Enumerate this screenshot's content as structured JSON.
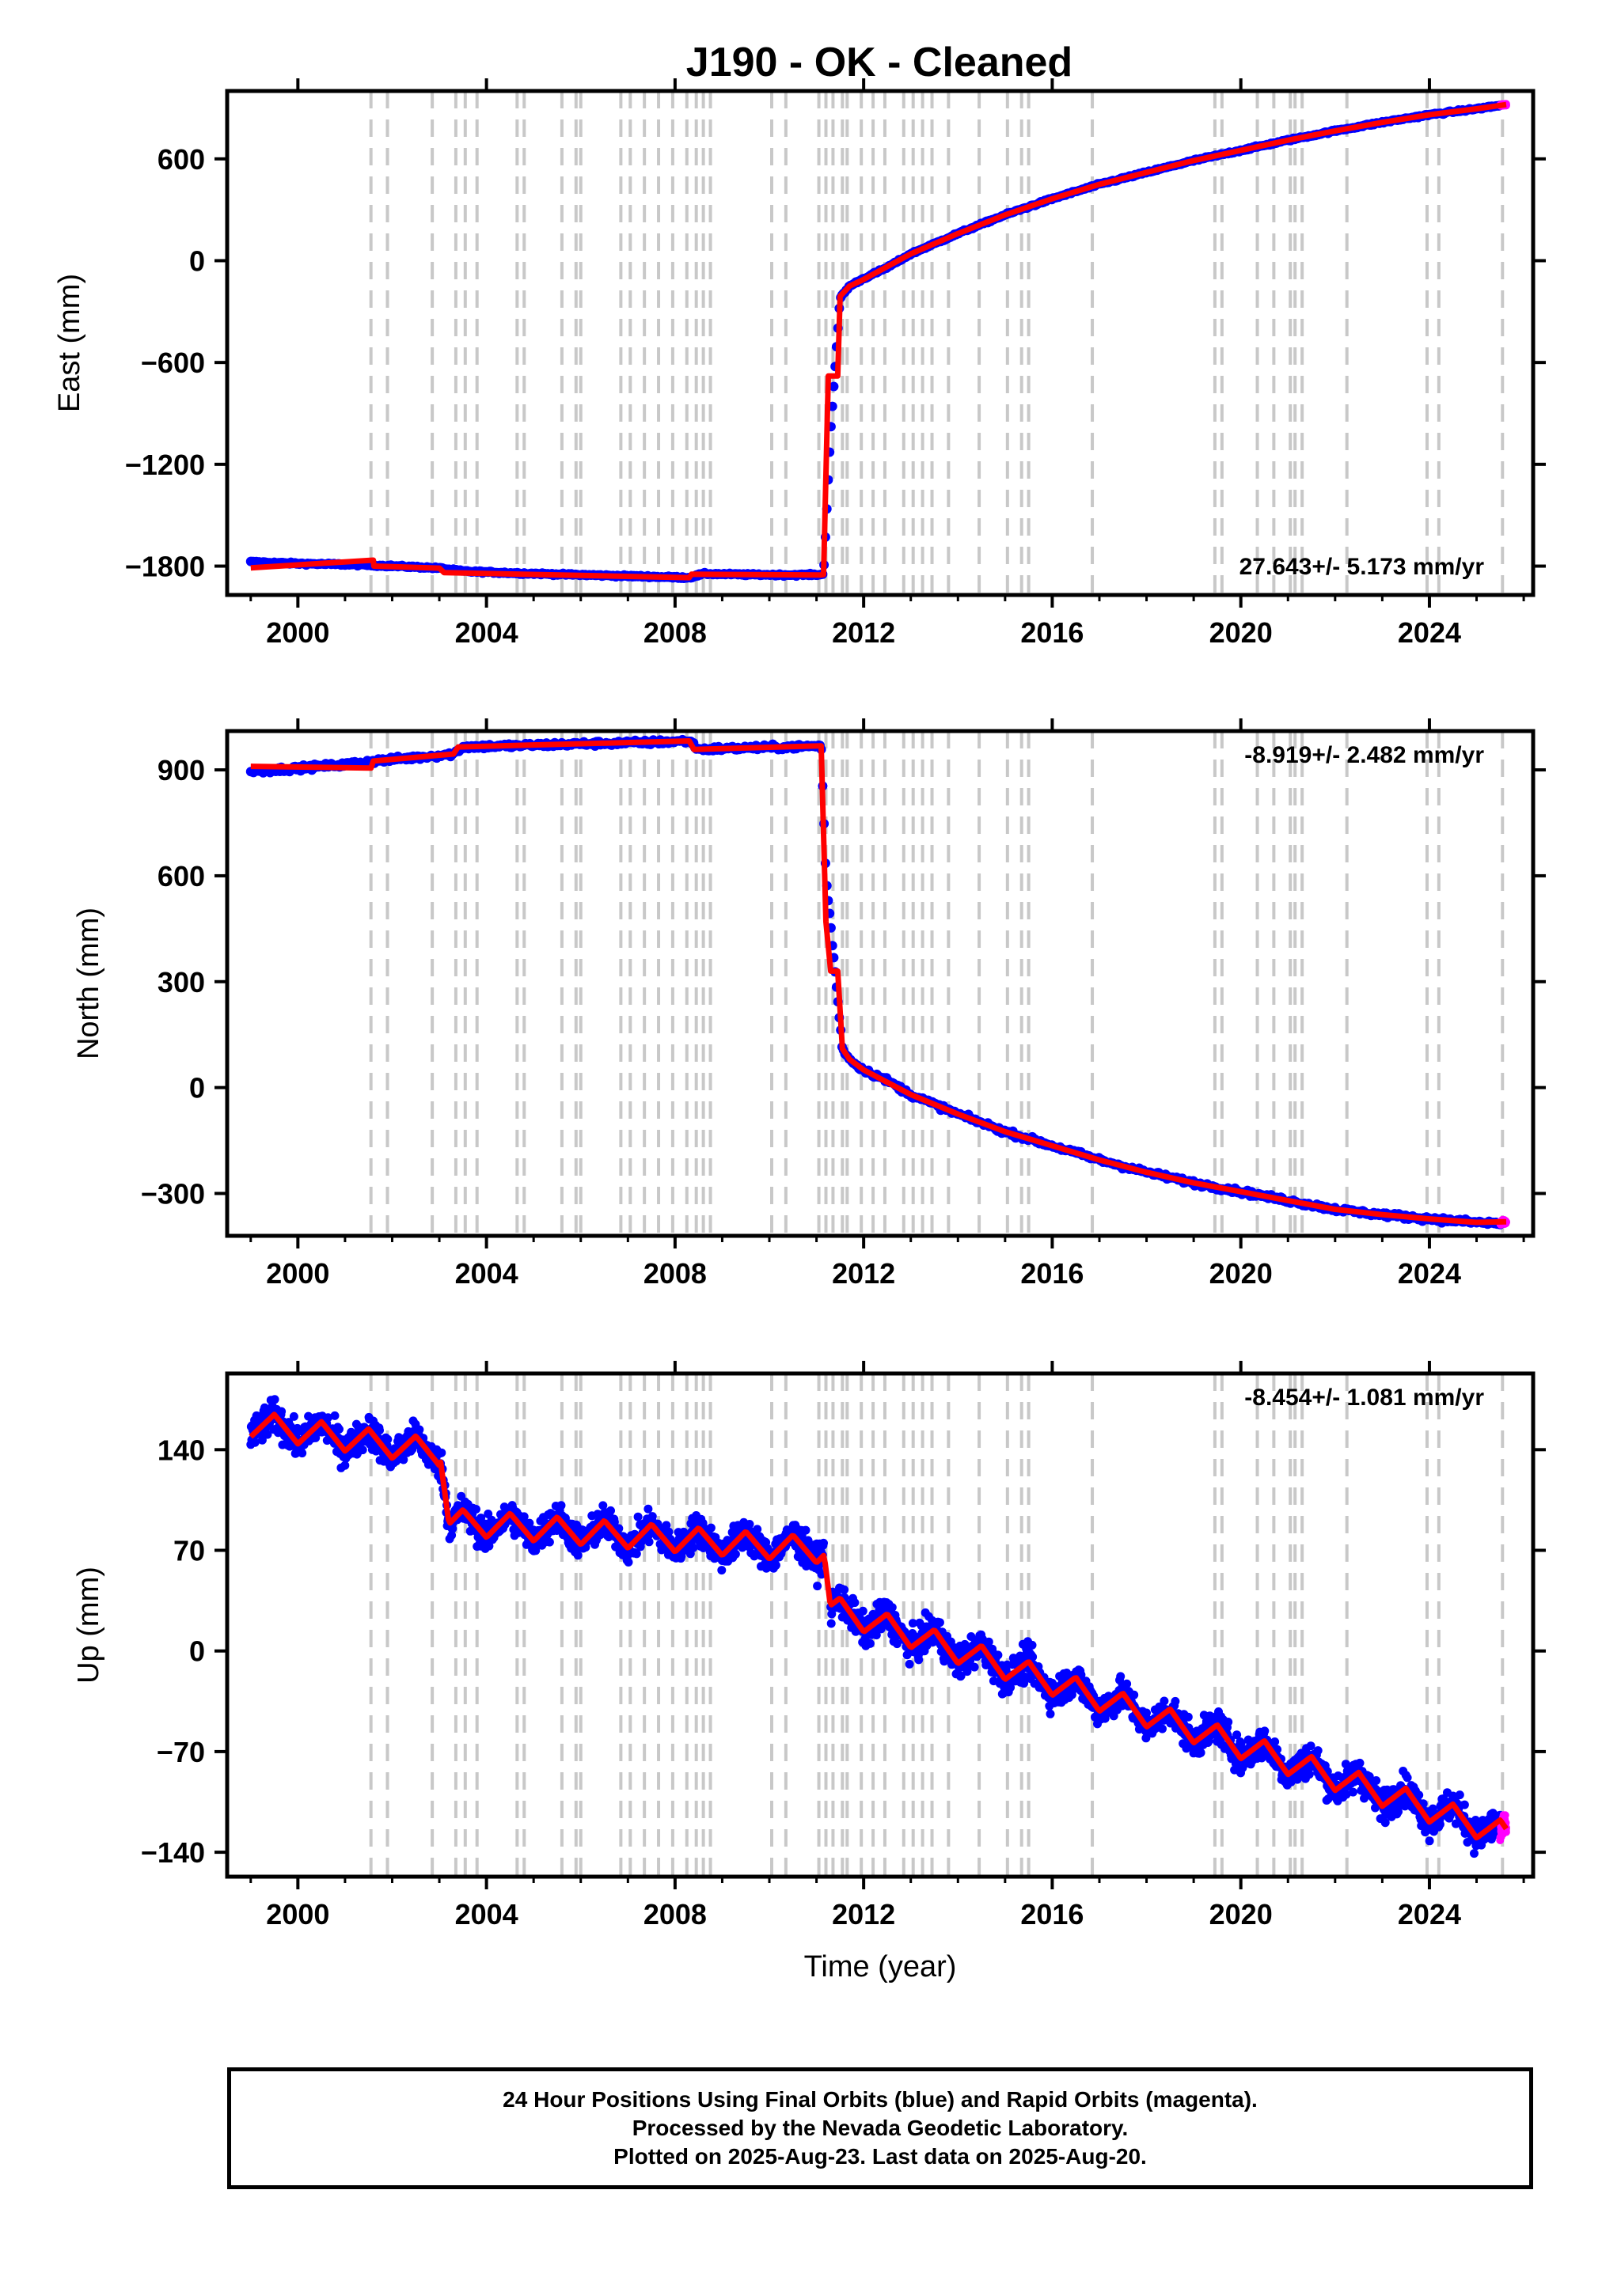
{
  "title": "J190  - OK - Cleaned",
  "colors": {
    "final_orbits": "#0000ff",
    "rapid_orbits": "#ff00ff",
    "model": "#ff0000",
    "steps": "#c8c8c8",
    "axes": "#000000"
  },
  "chart_data": [
    {
      "type": "scatter",
      "ylabel": "East (mm)",
      "xlabel": "",
      "xlim": [
        1998.5,
        2026.2
      ],
      "ylim": [
        -1970,
        1000
      ],
      "xticks": [
        2000,
        2004,
        2008,
        2012,
        2016,
        2020,
        2024
      ],
      "yticks": [
        600,
        0,
        -600,
        -1200,
        -1800
      ],
      "tick_labels_y": [
        "600",
        "0",
        "−600",
        "−1200",
        "−1800"
      ],
      "rate_label": "27.643+/- 5.173 mm/yr",
      "rate_position": "bottom-right",
      "series": [
        {
          "kind": "final_orbits",
          "x": [
            1999.0,
            2000.0,
            2001.0,
            2001.6,
            2002.5,
            2003.0,
            2003.5,
            2004.5,
            2005.5,
            2006.5,
            2007.5,
            2008.3,
            2008.6,
            2009.5,
            2010.5,
            2011.15,
            2011.3,
            2011.5,
            2011.7,
            2012.0,
            2012.5,
            2013.0,
            2014.0,
            2015.0,
            2016.0,
            2017.0,
            2018.0,
            2019.0,
            2020.0,
            2021.0,
            2022.0,
            2023.0,
            2024.0,
            2025.0,
            2025.5
          ],
          "y": [
            -1775,
            -1785,
            -1790,
            -1795,
            -1805,
            -1812,
            -1830,
            -1840,
            -1848,
            -1855,
            -1862,
            -1868,
            -1845,
            -1850,
            -1852,
            -1850,
            -1005,
            -220,
            -150,
            -105,
            -40,
            40,
            160,
            270,
            365,
            450,
            520,
            590,
            650,
            710,
            765,
            815,
            860,
            895,
            915
          ]
        },
        {
          "kind": "rapid_orbits",
          "x": [
            2025.5,
            2025.63
          ],
          "y": [
            915,
            920
          ]
        }
      ],
      "model": {
        "x": [
          1999.0,
          2001.6,
          2001.61,
          2003.0,
          2003.1,
          2008.3,
          2008.35,
          2011.1,
          2011.15,
          2011.25,
          2011.45,
          2011.5,
          2011.7,
          2012.0,
          2013.0,
          2014.0,
          2015.0,
          2016.0,
          2017.0,
          2018.0,
          2019.0,
          2020.0,
          2021.0,
          2022.0,
          2023.0,
          2024.0,
          2025.0,
          2025.63
        ],
        "y": [
          -1810,
          -1765,
          -1800,
          -1812,
          -1838,
          -1868,
          -1848,
          -1852,
          -1850,
          -680,
          -680,
          -210,
          -150,
          -110,
          40,
          160,
          270,
          365,
          450,
          520,
          590,
          650,
          710,
          765,
          815,
          860,
          895,
          920
        ]
      },
      "steps": [
        2001.55,
        2001.9,
        2002.85,
        2003.35,
        2003.55,
        2003.8,
        2004.65,
        2004.8,
        2005.6,
        2005.9,
        2006.0,
        2006.85,
        2007.05,
        2007.35,
        2007.65,
        2007.95,
        2008.25,
        2008.45,
        2008.6,
        2008.75,
        2010.05,
        2010.35,
        2011.05,
        2011.2,
        2011.35,
        2011.55,
        2011.65,
        2011.95,
        2012.2,
        2012.45,
        2012.85,
        2013.05,
        2013.25,
        2013.45,
        2013.8,
        2014.45,
        2015.05,
        2015.35,
        2015.5,
        2016.85,
        2019.45,
        2019.6,
        2020.35,
        2020.7,
        2021.05,
        2021.15,
        2021.3,
        2022.25,
        2023.95,
        2024.2,
        2025.55
      ]
    },
    {
      "type": "scatter",
      "ylabel": "North (mm)",
      "xlabel": "",
      "xlim": [
        1998.5,
        2026.2
      ],
      "ylim": [
        -420,
        1010
      ],
      "xticks": [
        2000,
        2004,
        2008,
        2012,
        2016,
        2020,
        2024
      ],
      "yticks": [
        900,
        600,
        300,
        0,
        -300
      ],
      "tick_labels_y": [
        "900",
        "600",
        "300",
        "0",
        "−300"
      ],
      "rate_label": "-8.919+/- 2.482 mm/yr",
      "rate_position": "top-right",
      "series": [
        {
          "kind": "final_orbits",
          "x": [
            1999.0,
            2000.0,
            2001.0,
            2001.6,
            2002.5,
            2003.3,
            2003.5,
            2004.5,
            2005.5,
            2006.5,
            2007.5,
            2008.3,
            2008.5,
            2009.5,
            2010.5,
            2011.1,
            2011.2,
            2011.4,
            2011.55,
            2011.7,
            2012.0,
            2012.5,
            2013.0,
            2014.0,
            2015.0,
            2016.0,
            2017.0,
            2018.0,
            2019.0,
            2020.0,
            2021.0,
            2022.0,
            2023.0,
            2024.0,
            2025.0,
            2025.5
          ],
          "y": [
            895,
            905,
            915,
            925,
            935,
            945,
            965,
            968,
            972,
            975,
            978,
            982,
            958,
            962,
            965,
            968,
            600,
            320,
            110,
            80,
            50,
            20,
            -20,
            -75,
            -125,
            -165,
            -205,
            -240,
            -270,
            -295,
            -320,
            -345,
            -360,
            -372,
            -382,
            -385
          ]
        },
        {
          "kind": "rapid_orbits",
          "x": [
            2025.5,
            2025.63
          ],
          "y": [
            -385,
            -380
          ]
        }
      ],
      "model": {
        "x": [
          1999.0,
          2001.55,
          2001.6,
          2003.3,
          2003.4,
          2008.3,
          2008.4,
          2011.1,
          2011.2,
          2011.3,
          2011.45,
          2011.55,
          2011.7,
          2012.0,
          2013.0,
          2014.0,
          2015.0,
          2016.0,
          2017.0,
          2018.0,
          2019.0,
          2020.0,
          2021.0,
          2022.0,
          2023.0,
          2024.0,
          2025.0,
          2025.63
        ],
        "y": [
          910,
          905,
          925,
          945,
          965,
          982,
          958,
          968,
          470,
          330,
          330,
          110,
          80,
          50,
          -20,
          -75,
          -125,
          -165,
          -205,
          -240,
          -270,
          -295,
          -320,
          -345,
          -360,
          -372,
          -382,
          -380
        ]
      },
      "steps": [
        2001.55,
        2001.9,
        2002.85,
        2003.35,
        2003.55,
        2003.8,
        2004.65,
        2004.8,
        2005.6,
        2005.9,
        2006.0,
        2006.85,
        2007.05,
        2007.35,
        2007.65,
        2007.95,
        2008.25,
        2008.45,
        2008.6,
        2008.75,
        2010.05,
        2010.35,
        2011.05,
        2011.2,
        2011.35,
        2011.55,
        2011.65,
        2011.95,
        2012.2,
        2012.45,
        2012.85,
        2013.05,
        2013.25,
        2013.45,
        2013.8,
        2014.45,
        2015.05,
        2015.35,
        2015.5,
        2016.85,
        2019.45,
        2019.6,
        2020.35,
        2020.7,
        2021.05,
        2021.15,
        2021.3,
        2022.25,
        2023.95,
        2024.2,
        2025.55
      ]
    },
    {
      "type": "scatter",
      "ylabel": "Up (mm)",
      "xlabel": "Time (year)",
      "xlim": [
        1998.5,
        2026.2
      ],
      "ylim": [
        -157,
        193
      ],
      "xticks": [
        2000,
        2004,
        2008,
        2012,
        2016,
        2020,
        2024
      ],
      "yticks": [
        140,
        70,
        0,
        -70,
        -140
      ],
      "tick_labels_y": [
        "140",
        "70",
        "0",
        "−70",
        "−140"
      ],
      "rate_label": "-8.454+/- 1.081 mm/yr",
      "rate_position": "top-right",
      "series": [
        {
          "kind": "final_orbits",
          "x_start": 1999.0,
          "x_end": 2025.5,
          "noise_mm": 8,
          "note_visible": false
        },
        {
          "kind": "rapid_orbits",
          "x": [
            2025.5,
            2025.55,
            2025.6,
            2025.63
          ],
          "y": [
            -130,
            -122,
            -118,
            -125
          ]
        }
      ],
      "model_segments": [
        {
          "x0": 1999.0,
          "x1": 2003.0,
          "y0": 158,
          "y1": 138
        },
        {
          "x0": 2003.2,
          "x1": 2011.15,
          "y0": 90,
          "y1": 70
        },
        {
          "x0": 2011.3,
          "x1": 2025.63,
          "y0": 30,
          "y1": -128
        }
      ],
      "model_annual_amplitude": 9,
      "steps": [
        2001.55,
        2001.9,
        2002.85,
        2003.35,
        2003.55,
        2003.8,
        2004.65,
        2004.8,
        2005.6,
        2005.9,
        2006.0,
        2006.85,
        2007.05,
        2007.35,
        2007.65,
        2007.95,
        2008.25,
        2008.45,
        2008.6,
        2008.75,
        2010.05,
        2010.35,
        2011.05,
        2011.2,
        2011.35,
        2011.55,
        2011.65,
        2011.95,
        2012.2,
        2012.45,
        2012.85,
        2013.05,
        2013.25,
        2013.45,
        2013.8,
        2014.45,
        2015.05,
        2015.35,
        2015.5,
        2016.85,
        2019.45,
        2019.6,
        2020.35,
        2020.7,
        2021.05,
        2021.15,
        2021.3,
        2022.25,
        2023.95,
        2024.2,
        2025.55
      ]
    }
  ],
  "footer": {
    "line1": "24 Hour Positions Using Final Orbits (blue) and Rapid Orbits (magenta).",
    "line2": "Processed by the Nevada Geodetic Laboratory.",
    "line3": "Plotted on 2025-Aug-23. Last data on 2025-Aug-20."
  }
}
